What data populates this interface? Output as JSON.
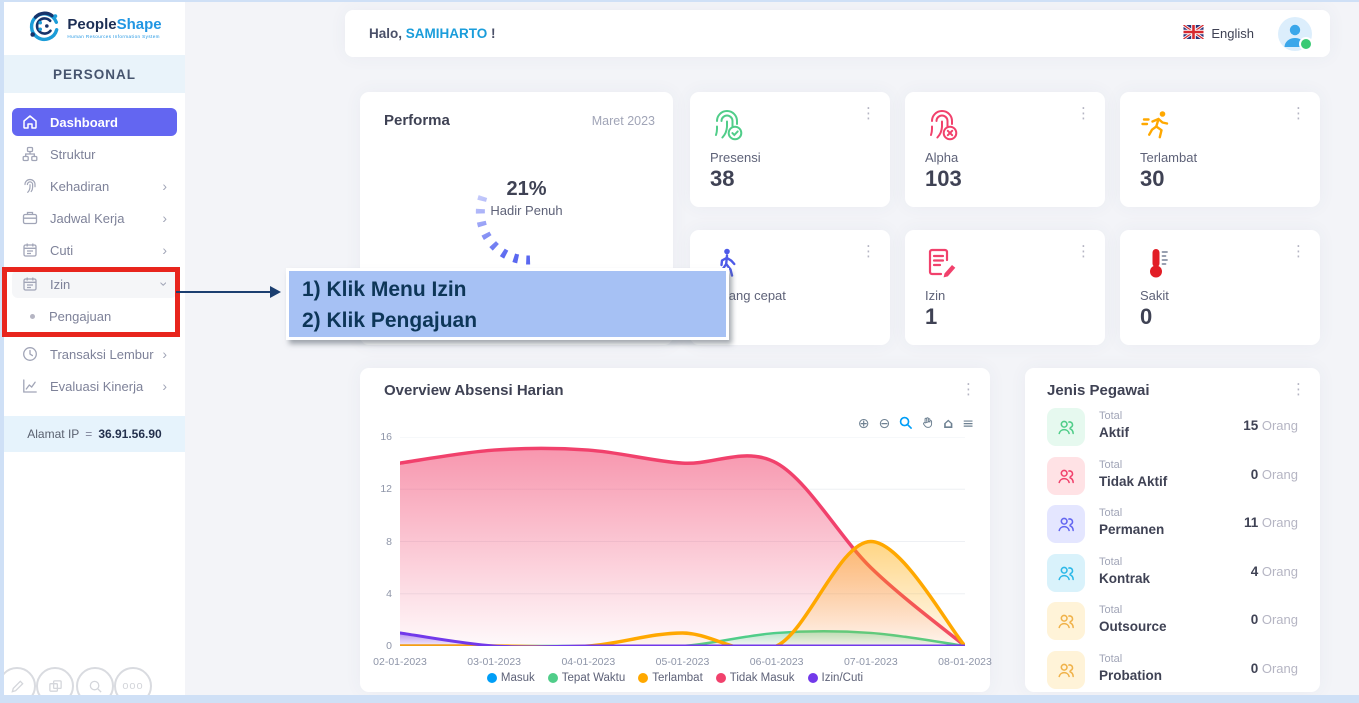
{
  "colors": {
    "accent": "#6366f1",
    "link_blue": "#1a9ddb",
    "success": "#50cd89",
    "danger": "#f1416c",
    "warning": "#ffa800",
    "purple": "#7239ea",
    "highlight_red": "#e8251d",
    "note_bg": "#a6c1f4",
    "note_text": "#0d3658",
    "edge": "#cfe0f6"
  },
  "sidebar": {
    "logo": {
      "brand_primary": "People",
      "brand_secondary": "Shape",
      "tagline": "Human Resources Information System"
    },
    "section_label": "PERSONAL",
    "items": [
      {
        "label": "Dashboard"
      },
      {
        "label": "Struktur"
      },
      {
        "label": "Kehadiran",
        "chevron": "›"
      },
      {
        "label": "Jadwal Kerja",
        "chevron": "›"
      },
      {
        "label": "Cuti",
        "chevron": "›"
      },
      {
        "label": "Izin",
        "chevron": "›"
      },
      {
        "label": "Pengajuan"
      },
      {
        "label": "Transaksi Lembur",
        "chevron": "›"
      },
      {
        "label": "Evaluasi Kinerja",
        "chevron": "›"
      }
    ],
    "ip": {
      "label": "Alamat IP",
      "separator": "=",
      "value": "36.91.56.90"
    }
  },
  "topbar": {
    "greeting_prefix": "Halo, ",
    "username": "SAMIHARTO",
    "greeting_suffix": " !",
    "language": "English"
  },
  "performa": {
    "title": "Performa",
    "period": "Maret 2023",
    "percent": "21%",
    "caption": "Hadir Penuh"
  },
  "stat_cards": [
    {
      "label": "Presensi",
      "value": "38"
    },
    {
      "label": "Alpha",
      "value": "103"
    },
    {
      "label": "Terlambat",
      "value": "30"
    },
    {
      "label": "Pulang cepat",
      "value": ""
    },
    {
      "label": "Izin",
      "value": "1"
    },
    {
      "label": "Sakit",
      "value": "0"
    }
  ],
  "annotation": {
    "step1": "1) Klik Menu Izin",
    "step2": "2) Klik Pengajuan"
  },
  "chart_card": {
    "title": "Overview Absensi Harian"
  },
  "chart_data": {
    "type": "area",
    "title": "Overview Absensi Harian",
    "x": [
      "02-01-2023",
      "03-01-2023",
      "04-01-2023",
      "05-01-2023",
      "06-01-2023",
      "07-01-2023",
      "08-01-2023"
    ],
    "series": [
      {
        "name": "Masuk",
        "color": "#009ef7",
        "values": [
          0,
          0,
          0,
          0,
          0,
          0,
          0
        ]
      },
      {
        "name": "Tepat Waktu",
        "color": "#50cd89",
        "values": [
          0,
          0,
          0,
          0,
          1,
          1,
          0
        ]
      },
      {
        "name": "Terlambat",
        "color": "#ffa800",
        "values": [
          0,
          0,
          0,
          1,
          0,
          8,
          0
        ]
      },
      {
        "name": "Tidak Masuk",
        "color": "#f1416c",
        "values": [
          14,
          15,
          15,
          14,
          14,
          6,
          0
        ]
      },
      {
        "name": "Izin/Cuti",
        "color": "#7239ea",
        "values": [
          1,
          0,
          0,
          0,
          0,
          0,
          0
        ]
      }
    ],
    "ylim": [
      0,
      16
    ],
    "yticks": [
      0,
      4,
      8,
      12,
      16
    ],
    "grid": true,
    "legend_position": "bottom",
    "render_order": [
      0,
      3,
      1,
      2,
      4
    ]
  },
  "jenis_pegawai": {
    "title": "Jenis Pegawai",
    "unit": "Orang",
    "rows": [
      {
        "prefix": "Total",
        "name": "Aktif",
        "value": "15",
        "color": "#50cd89",
        "bg": "#e6f9ef"
      },
      {
        "prefix": "Total",
        "name": "Tidak Aktif",
        "value": "0",
        "color": "#f1416c",
        "bg": "#ffe2e5"
      },
      {
        "prefix": "Total",
        "name": "Permanen",
        "value": "11",
        "color": "#6366f1",
        "bg": "#e4e6ff"
      },
      {
        "prefix": "Total",
        "name": "Kontrak",
        "value": "4",
        "color": "#2cb8e8",
        "bg": "#d9f2fb"
      },
      {
        "prefix": "Total",
        "name": "Outsource",
        "value": "0",
        "color": "#f0b24a",
        "bg": "#fff3d8"
      },
      {
        "prefix": "Total",
        "name": "Probation",
        "value": "0",
        "color": "#f0b24a",
        "bg": "#fff3d8"
      }
    ]
  }
}
